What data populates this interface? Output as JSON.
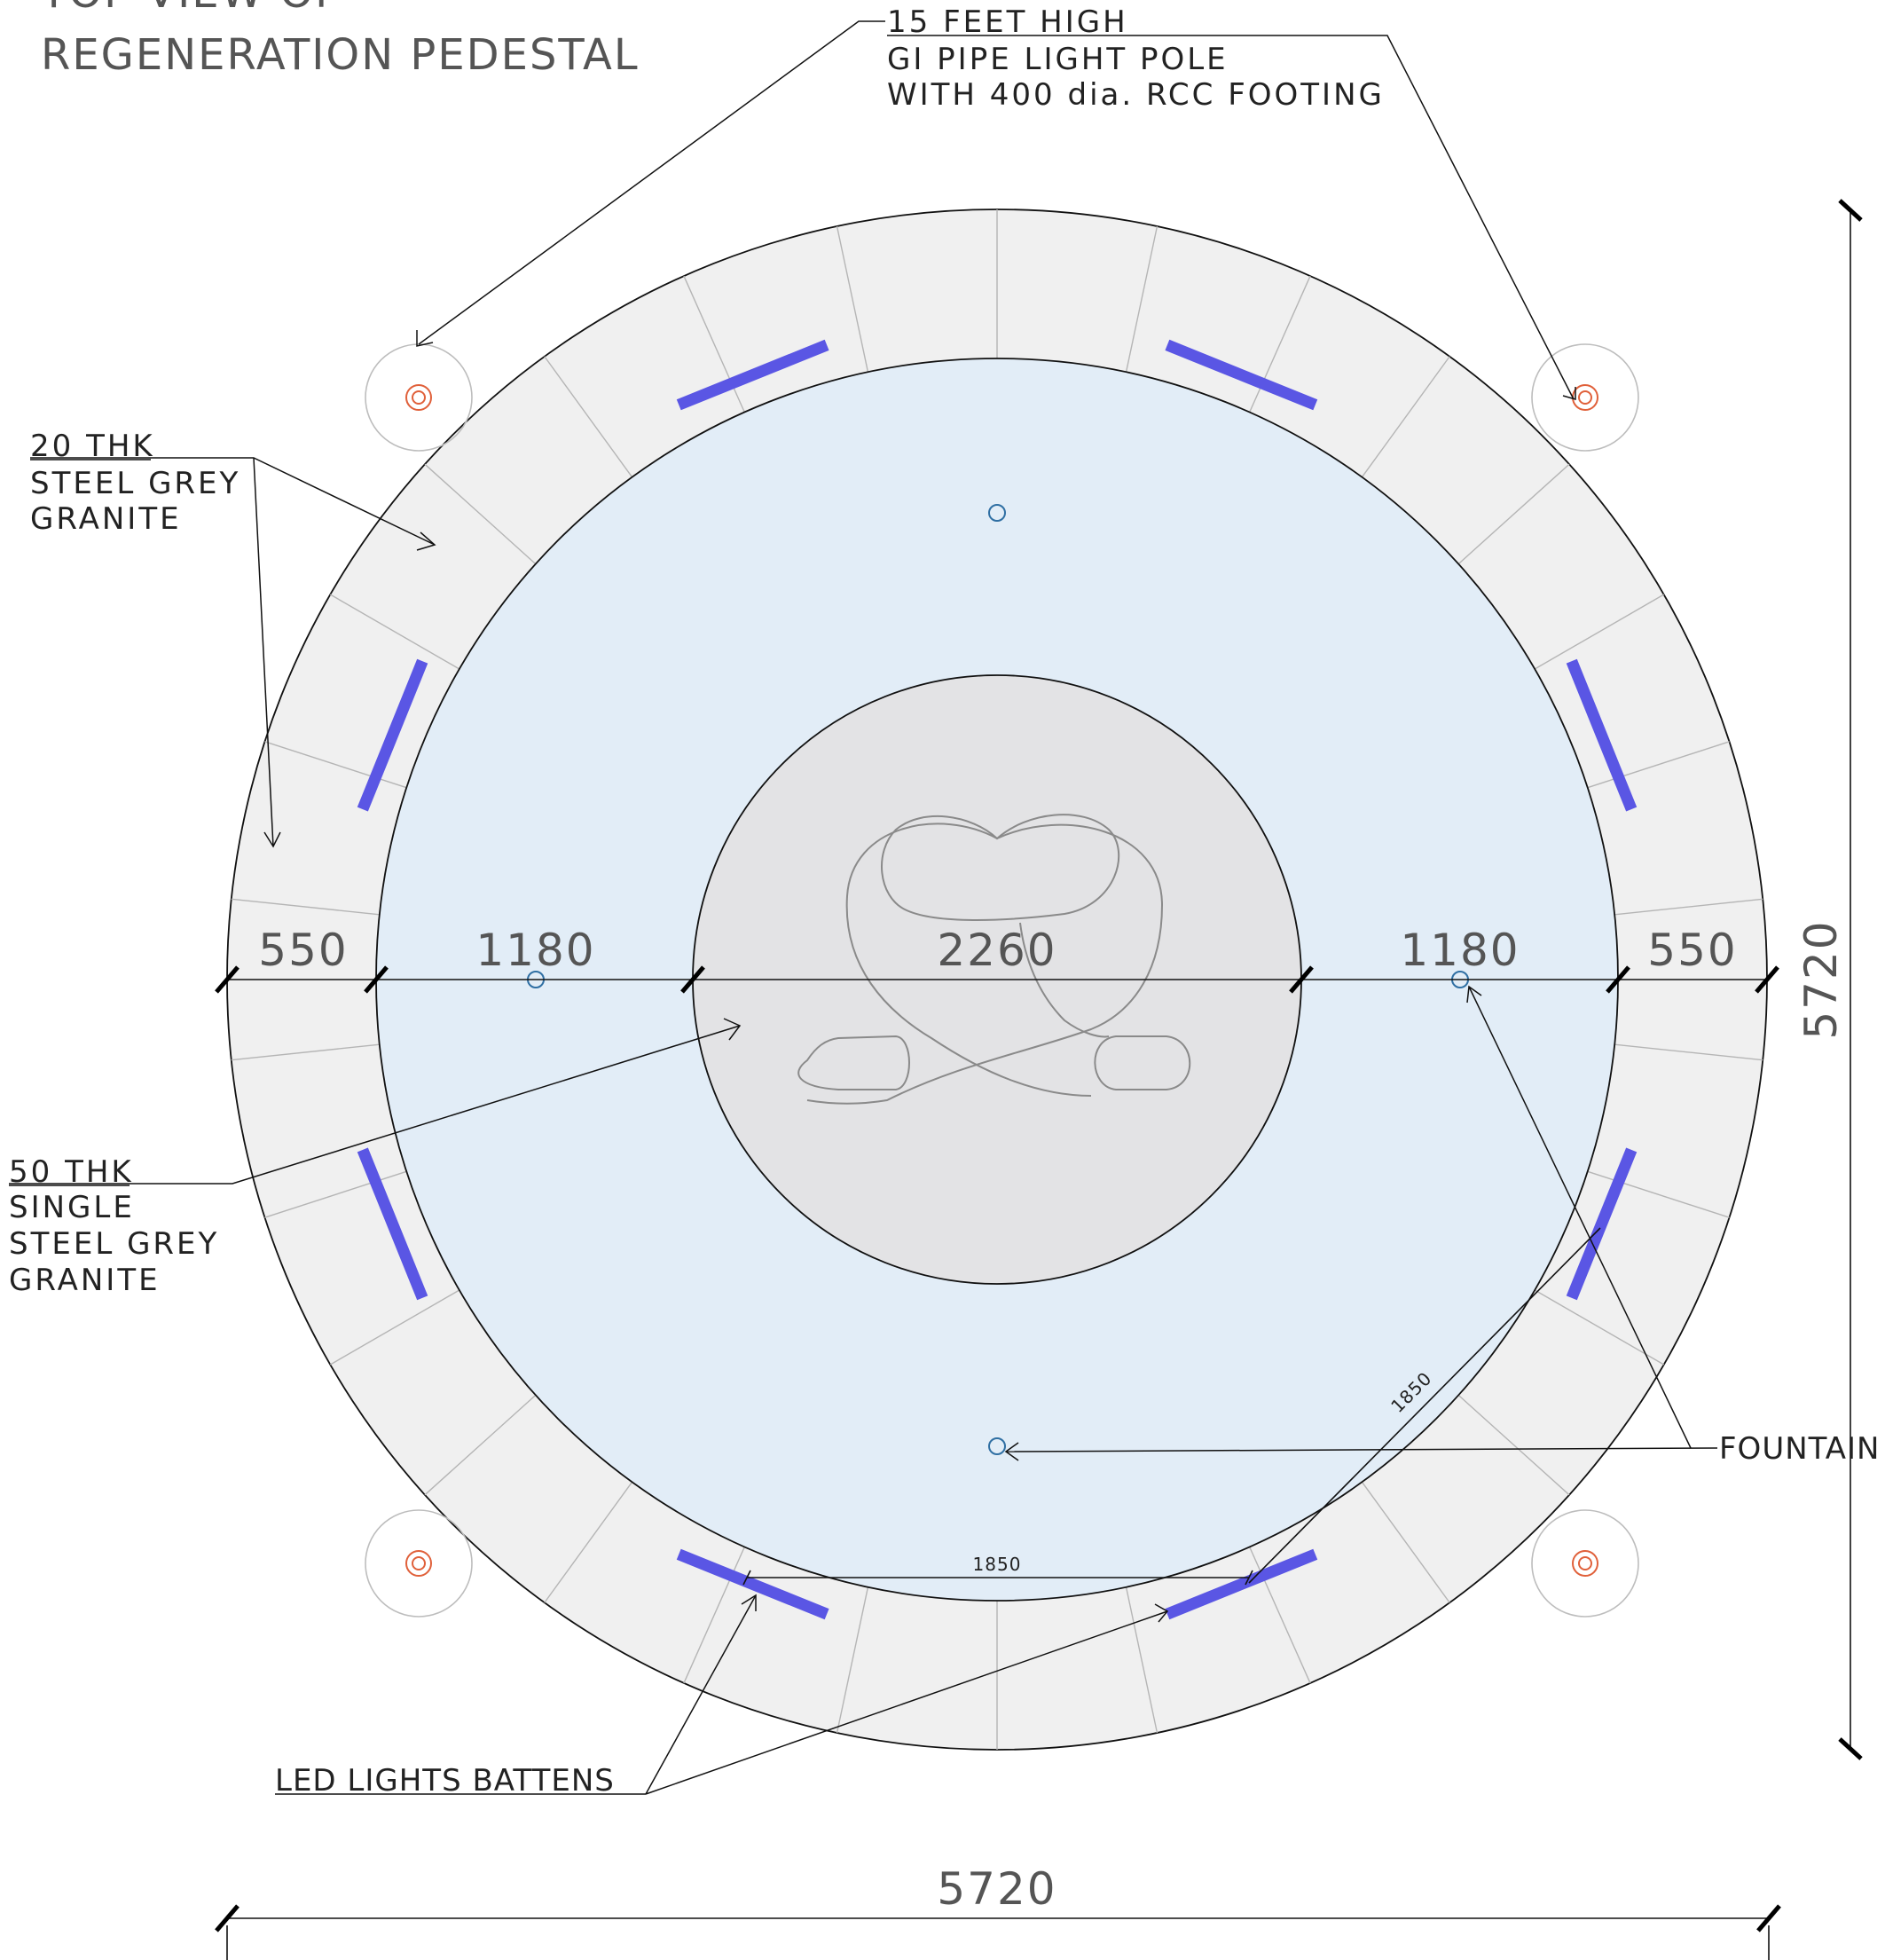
{
  "title": {
    "line1": "TOP VIEW OF",
    "line2": "REGENERATION PEDESTAL"
  },
  "callouts": {
    "light_pole": [
      "15 FEET HIGH",
      "GI PIPE LIGHT POLE",
      "WITH 400 dia. RCC FOOTING"
    ],
    "granite_20": [
      "20 THK",
      "STEEL GREY",
      "GRANITE"
    ],
    "granite_50": [
      "50 THK",
      "SINGLE",
      "STEEL GREY",
      "GRANITE"
    ],
    "fountain": "FOUNTAIN",
    "led": "LED LIGHTS BATTENS"
  },
  "dimensions": {
    "segments": [
      "550",
      "1180",
      "2260",
      "1180",
      "550"
    ],
    "overall_width": "5720",
    "overall_height": "5720",
    "batten_spacing_horizontal": "1850",
    "batten_spacing_diagonal": "1850"
  },
  "colors": {
    "granite_ring": "#f0f0f0",
    "water": "#e2edf7",
    "center_pedestal": "#e3e3e5",
    "led_batten": "#5a56e4",
    "fountain_nozzle": "#2f6fa3",
    "pole_marker": "#e0603a"
  }
}
